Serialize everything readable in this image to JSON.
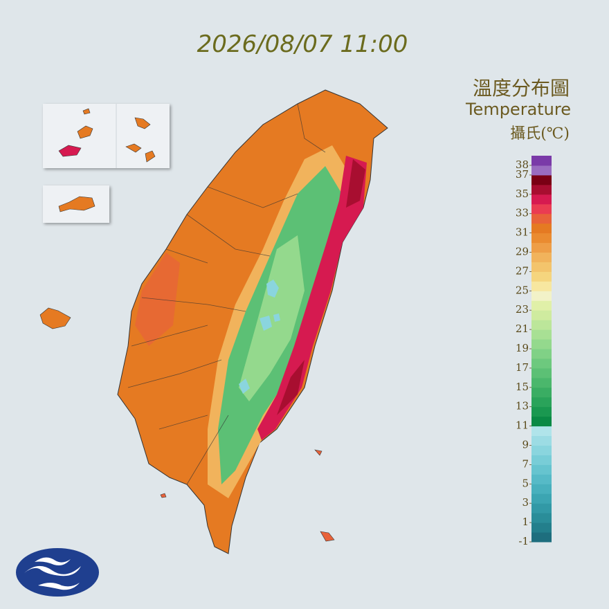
{
  "header": {
    "timestamp": "2026/08/07 11:00"
  },
  "legend": {
    "title": "溫度分布圖",
    "subtitle": "Temperature",
    "unit": "攝氏(℃)",
    "lim": [
      -1,
      39
    ],
    "ticks": [
      38,
      37,
      35,
      33,
      31,
      29,
      27,
      25,
      23,
      21,
      19,
      17,
      15,
      13,
      11,
      9,
      7,
      5,
      3,
      1,
      -1
    ],
    "colors": [
      "#1e6e7e",
      "#237f8c",
      "#2a8d99",
      "#3299a6",
      "#3ca5b2",
      "#48b0bd",
      "#56bac7",
      "#66c4cf",
      "#78cdd7",
      "#8ad5de",
      "#9cdce4",
      "#b0e4ea",
      "#0a8a45",
      "#1a9850",
      "#2aa35a",
      "#3aad63",
      "#4bb76c",
      "#5cc075",
      "#6dc97e",
      "#80d186",
      "#94d98d",
      "#a8e094",
      "#bce69a",
      "#cfeb9f",
      "#e0f0a8",
      "#f2f2c8",
      "#f7e7a0",
      "#f5d57e",
      "#f3c46c",
      "#f1b35c",
      "#ee9e47",
      "#ea8b30",
      "#e57a22",
      "#e8623a",
      "#ea3c52",
      "#d61a50",
      "#a80e30",
      "#7a0014",
      "#9a6cc0",
      "#7a3aa8"
    ]
  }
}
